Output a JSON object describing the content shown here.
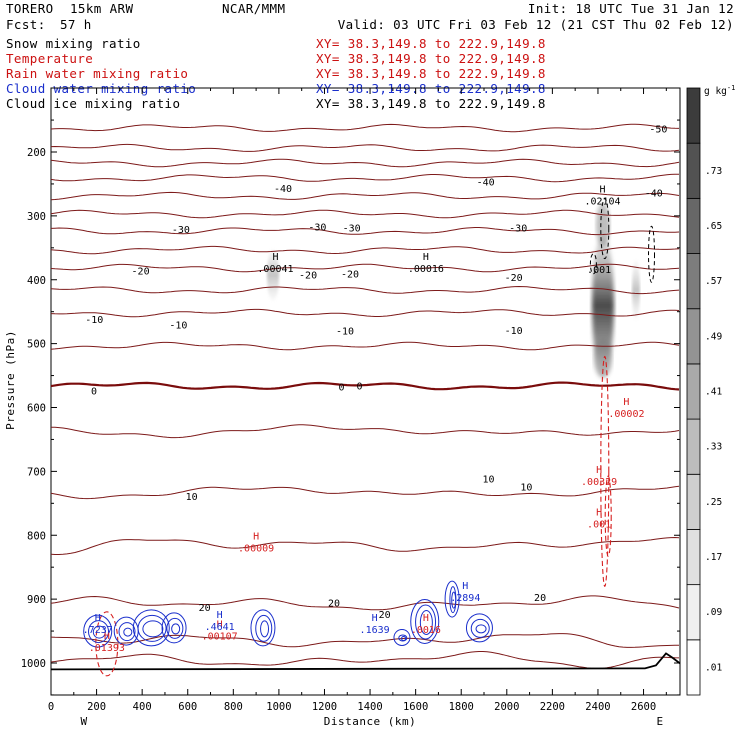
{
  "header": {
    "model_name": "TORERO",
    "model_res": "15km ARW",
    "org": "NCAR/MMM",
    "init": "Init: 18 UTC Tue 31 Jan 12",
    "fcst_label": "Fcst:",
    "fcst_value": "57 h",
    "valid": "Valid: 03 UTC Fri 03 Feb 12 (21 CST Thu 02 Feb 12)"
  },
  "fields": [
    {
      "name": "Snow mixing ratio",
      "xy": "XY=  38.3,149.8 to 222.9,149.8",
      "color": "#000000",
      "xy_color": "#cc1111"
    },
    {
      "name": "Temperature",
      "xy": "XY=  38.3,149.8 to 222.9,149.8",
      "color": "#cc1111",
      "xy_color": "#cc1111"
    },
    {
      "name": "Rain water mixing ratio",
      "xy": "XY=  38.3,149.8 to 222.9,149.8",
      "color": "#cc1111",
      "xy_color": "#cc1111"
    },
    {
      "name": "Cloud water mixing ratio",
      "xy": "XY=  38.3,149.8 to 222.9,149.8",
      "color": "#1a2fcc",
      "xy_color": "#1a2fcc"
    },
    {
      "name": "Cloud ice mixing ratio",
      "xy": "XY=  38.3,149.8 to 222.9,149.8",
      "color": "#000000",
      "xy_color": "#000000"
    }
  ],
  "chart_data": {
    "type": "heatmap",
    "ylabel": "Pressure (hPa)",
    "xlabel": "Distance (km)",
    "x_left_label": "W",
    "x_right_label": "E",
    "xlim": [
      0,
      2760
    ],
    "ylim": [
      1050,
      100
    ],
    "y_ticks": [
      200,
      300,
      400,
      500,
      600,
      700,
      800,
      900,
      1000
    ],
    "x_ticks": [
      0,
      200,
      400,
      600,
      800,
      1000,
      1200,
      1400,
      1600,
      1800,
      2000,
      2200,
      2400,
      2600
    ],
    "colorbar": {
      "unit": "g kg",
      "unit_exp": "-1",
      "levels": [
        0.01,
        0.09,
        0.17,
        0.25,
        0.33,
        0.41,
        0.49,
        0.57,
        0.65,
        0.73
      ],
      "labels": [
        ".01",
        ".09",
        ".17",
        ".25",
        ".33",
        ".41",
        ".49",
        ".57",
        ".65",
        ".73"
      ],
      "colors": [
        "#ffffff",
        "#f0f0f0",
        "#e0e0e0",
        "#cfcfcf",
        "#bdbdbd",
        "#a9a9a9",
        "#939393",
        "#7d7d7d",
        "#676767",
        "#525252",
        "#3c3c3c"
      ]
    },
    "temperature_contours": [
      {
        "level": -50,
        "labels": [
          {
            "x": 2665,
            "p": 165,
            "text": "-50"
          }
        ]
      },
      {
        "level": -40,
        "labels": [
          {
            "x": 1018,
            "p": 258,
            "text": "-40"
          },
          {
            "x": 1907,
            "p": 248,
            "text": "-40"
          },
          {
            "x": 2645,
            "p": 265,
            "text": "-40"
          }
        ]
      },
      {
        "level": -30,
        "labels": [
          {
            "x": 570,
            "p": 322,
            "text": "-30"
          },
          {
            "x": 1169,
            "p": 318,
            "text": "-30"
          },
          {
            "x": 1319,
            "p": 320,
            "text": "-30"
          },
          {
            "x": 2050,
            "p": 320,
            "text": "-30"
          }
        ]
      },
      {
        "level": -20,
        "labels": [
          {
            "x": 393,
            "p": 387,
            "text": "-20"
          },
          {
            "x": 1128,
            "p": 393,
            "text": "-20"
          },
          {
            "x": 1312,
            "p": 392,
            "text": "-20"
          },
          {
            "x": 2030,
            "p": 397,
            "text": "-20"
          }
        ]
      },
      {
        "level": -10,
        "labels": [
          {
            "x": 190,
            "p": 463,
            "text": "-10"
          },
          {
            "x": 559,
            "p": 472,
            "text": "-10"
          },
          {
            "x": 1290,
            "p": 481,
            "text": "-10"
          },
          {
            "x": 2030,
            "p": 480,
            "text": "-10"
          }
        ]
      },
      {
        "level": 0,
        "labels": [
          {
            "x": 189,
            "p": 575,
            "text": "0"
          },
          {
            "x": 1275,
            "p": 569,
            "text": "0"
          },
          {
            "x": 1354,
            "p": 567,
            "text": "0"
          }
        ]
      },
      {
        "level": 10,
        "labels": [
          {
            "x": 617,
            "p": 740,
            "text": "10"
          },
          {
            "x": 1920,
            "p": 713,
            "text": "10"
          },
          {
            "x": 2086,
            "p": 725,
            "text": "10"
          }
        ]
      },
      {
        "level": 20,
        "labels": [
          {
            "x": 674,
            "p": 914,
            "text": "20"
          },
          {
            "x": 1242,
            "p": 907,
            "text": "20"
          },
          {
            "x": 1464,
            "p": 925,
            "text": "20"
          },
          {
            "x": 2146,
            "p": 898,
            "text": "20"
          }
        ]
      }
    ],
    "snow_maxima": [
      {
        "x": 985,
        "p": 385,
        "text": ".00041"
      },
      {
        "x": 1645,
        "p": 385,
        "text": ".00016"
      },
      {
        "x": 2420,
        "p": 279,
        "text": ".02104"
      }
    ],
    "cloud_ice_labels": [
      {
        "x": 2405,
        "p": 385,
        "text": ".001"
      }
    ],
    "rain_maxima": [
      {
        "x": 2525,
        "p": 612,
        "text": ".00002"
      },
      {
        "x": 2405,
        "p": 718,
        "text": ".00329"
      },
      {
        "x": 2405,
        "p": 785,
        "text": ".001"
      },
      {
        "x": 900,
        "p": 822,
        "text": ".00009"
      },
      {
        "x": 740,
        "p": 960,
        "text": ".00107"
      },
      {
        "x": 1645,
        "p": 950,
        "text": ".0016"
      },
      {
        "x": 245,
        "p": 978,
        "text": ".01393"
      }
    ],
    "cloud_water_maxima": [
      {
        "x": 205,
        "p": 950,
        "text": ".7237"
      },
      {
        "x": 740,
        "p": 945,
        "text": ".4641"
      },
      {
        "x": 1420,
        "p": 950,
        "text": ".1639"
      },
      {
        "x": 1818,
        "p": 900,
        "text": ".2894"
      }
    ]
  }
}
